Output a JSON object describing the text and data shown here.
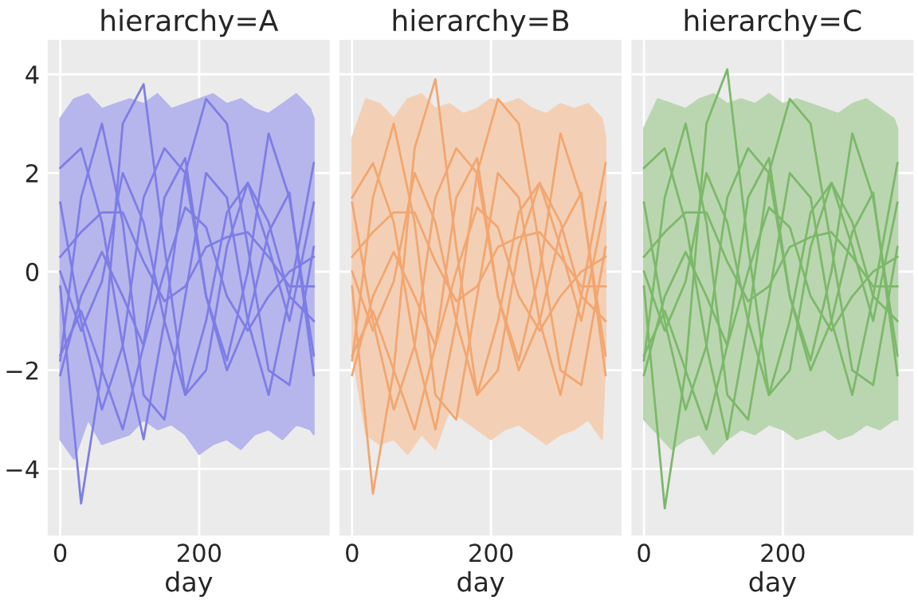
{
  "chart_data": [
    {
      "type": "line",
      "title": "hierarchy=A",
      "xlabel": "day",
      "xlim": [
        -18,
        388
      ],
      "ylim": [
        -5.35,
        4.7
      ],
      "xticks": [
        0,
        200
      ],
      "yticks": [
        -4,
        -2,
        0,
        2,
        4
      ],
      "grid": true,
      "x": [
        0,
        30,
        60,
        90,
        120,
        150,
        180,
        210,
        240,
        270,
        300,
        330,
        365
      ],
      "series": [
        {
          "type": "area",
          "color": "#b6b6ec",
          "x": [
            0,
            20,
            40,
            60,
            80,
            100,
            120,
            140,
            160,
            180,
            200,
            220,
            240,
            260,
            280,
            300,
            320,
            340,
            360,
            365
          ],
          "values": [
            3.1,
            3.5,
            3.6,
            3.3,
            3.4,
            3.5,
            3.4,
            3.6,
            3.3,
            3.4,
            3.5,
            3.6,
            3.4,
            3.5,
            3.3,
            3.2,
            3.4,
            3.6,
            3.3,
            3.1
          ]
        },
        {
          "type": "area",
          "color": "#b6b6ec",
          "x": [
            0,
            20,
            40,
            60,
            80,
            100,
            120,
            140,
            160,
            180,
            200,
            220,
            240,
            260,
            280,
            300,
            320,
            340,
            360,
            365
          ],
          "values": [
            -3.4,
            -3.8,
            -3.0,
            -3.5,
            -3.4,
            -3.3,
            -3.0,
            -3.2,
            -3.1,
            -3.3,
            -3.7,
            -3.5,
            -3.4,
            -3.6,
            -3.3,
            -3.2,
            -3.4,
            -3.1,
            -3.2,
            -3.3
          ]
        },
        {
          "color": "#7d7de6",
          "values": [
            -0.3,
            -4.7,
            -2.0,
            3.0,
            3.8,
            0.5,
            -2.5,
            -2.0,
            0.5,
            1.8,
            1.0,
            -0.5,
            -1.0
          ]
        },
        {
          "color": "#7d7de6",
          "values": [
            2.1,
            2.5,
            1.0,
            -1.5,
            -3.4,
            -1.0,
            2.0,
            3.5,
            3.0,
            0.5,
            -2.0,
            -2.3,
            0.5
          ]
        },
        {
          "color": "#7d7de6",
          "values": [
            0.3,
            0.8,
            1.2,
            1.2,
            0.2,
            -0.6,
            -0.3,
            0.5,
            0.7,
            0.8,
            0.3,
            -0.3,
            -0.3
          ]
        },
        {
          "color": "#7d7de6",
          "values": [
            -1.8,
            1.5,
            3.0,
            1.0,
            -2.5,
            -3.0,
            -0.5,
            2.0,
            1.5,
            -1.0,
            -2.5,
            -0.5,
            2.2
          ]
        },
        {
          "color": "#7d7de6",
          "values": [
            1.4,
            -1.0,
            -2.8,
            -1.5,
            1.5,
            2.5,
            2.0,
            -0.5,
            -1.8,
            0.0,
            2.8,
            1.5,
            -1.7
          ]
        },
        {
          "color": "#7d7de6",
          "values": [
            -2.1,
            -0.5,
            0.4,
            -0.5,
            -1.5,
            0.0,
            1.3,
            0.9,
            -0.5,
            -1.2,
            -0.5,
            0.0,
            0.3
          ]
        },
        {
          "color": "#7d7de6",
          "values": [
            0.0,
            -1.2,
            -0.2,
            2.0,
            1.0,
            -1.0,
            -2.5,
            -1.0,
            1.2,
            1.8,
            0.5,
            -1.0,
            1.4
          ]
        },
        {
          "color": "#7d7de6",
          "values": [
            -1.7,
            -0.8,
            -2.0,
            -3.2,
            -1.5,
            1.5,
            2.3,
            -0.5,
            -2.0,
            -1.0,
            0.8,
            1.6,
            -2.1
          ]
        }
      ]
    },
    {
      "type": "line",
      "title": "hierarchy=B",
      "xlabel": "day",
      "xlim": [
        -18,
        388
      ],
      "ylim": [
        -5.35,
        4.7
      ],
      "xticks": [
        0,
        200
      ],
      "yticks": [
        -4,
        -2,
        0,
        2,
        4
      ],
      "grid": true,
      "tick_labels": "x",
      "x": [
        0,
        30,
        60,
        90,
        120,
        150,
        180,
        210,
        240,
        270,
        300,
        330,
        365
      ],
      "series": [
        {
          "type": "area",
          "color": "#f3d0b5",
          "x": [
            0,
            20,
            40,
            60,
            80,
            100,
            120,
            140,
            160,
            180,
            200,
            220,
            240,
            260,
            280,
            300,
            320,
            340,
            360,
            365
          ],
          "values": [
            2.7,
            3.5,
            3.4,
            3.1,
            3.5,
            3.6,
            3.3,
            3.4,
            3.2,
            3.3,
            3.5,
            3.4,
            3.5,
            3.3,
            3.2,
            3.4,
            3.3,
            3.4,
            3.1,
            2.7
          ]
        },
        {
          "type": "area",
          "color": "#f3d0b5",
          "x": [
            0,
            20,
            40,
            60,
            80,
            100,
            120,
            140,
            160,
            180,
            200,
            220,
            240,
            260,
            280,
            300,
            320,
            340,
            360,
            365
          ],
          "values": [
            -1.6,
            -3.3,
            -3.5,
            -3.4,
            -3.7,
            -3.3,
            -3.6,
            -2.8,
            -3.0,
            -3.2,
            -3.4,
            -3.2,
            -3.1,
            -3.3,
            -3.5,
            -3.3,
            -3.2,
            -3.0,
            -3.4,
            -1.6
          ]
        },
        {
          "color": "#f2a670",
          "values": [
            -0.3,
            -4.5,
            -2.0,
            2.5,
            3.9,
            0.5,
            -2.5,
            -2.0,
            0.5,
            1.8,
            1.0,
            -0.5,
            -1.0
          ]
        },
        {
          "color": "#f2a670",
          "values": [
            1.5,
            2.2,
            1.0,
            -1.5,
            -3.2,
            -1.0,
            2.0,
            3.5,
            3.0,
            0.5,
            -2.0,
            -2.3,
            0.5
          ]
        },
        {
          "color": "#f2a670",
          "values": [
            0.3,
            0.8,
            1.2,
            1.2,
            0.2,
            -0.6,
            -0.3,
            0.5,
            0.7,
            0.8,
            0.3,
            -0.3,
            -0.3
          ]
        },
        {
          "color": "#f2a670",
          "values": [
            -1.8,
            1.5,
            3.0,
            1.0,
            -2.5,
            -3.0,
            -0.5,
            2.0,
            1.5,
            -1.0,
            -2.5,
            -0.5,
            2.2
          ]
        },
        {
          "color": "#f2a670",
          "values": [
            1.4,
            -1.0,
            -2.8,
            -1.5,
            1.5,
            2.5,
            2.0,
            -0.5,
            -1.8,
            0.0,
            2.8,
            1.5,
            -1.7
          ]
        },
        {
          "color": "#f2a670",
          "values": [
            -2.1,
            -0.5,
            0.4,
            -0.5,
            -1.5,
            0.0,
            1.3,
            0.9,
            -0.5,
            -1.2,
            -0.5,
            0.0,
            0.3
          ]
        },
        {
          "color": "#f2a670",
          "values": [
            0.0,
            -1.2,
            -0.2,
            2.0,
            1.0,
            -1.0,
            -2.5,
            -1.0,
            1.2,
            1.8,
            0.5,
            -1.0,
            1.4
          ]
        },
        {
          "color": "#f2a670",
          "values": [
            -1.7,
            -0.8,
            -2.0,
            -3.2,
            -1.5,
            1.5,
            2.3,
            -0.5,
            -2.0,
            -1.0,
            0.8,
            1.6,
            -2.1
          ]
        }
      ]
    },
    {
      "type": "line",
      "title": "hierarchy=C",
      "xlabel": "day",
      "xlim": [
        -18,
        388
      ],
      "ylim": [
        -5.35,
        4.7
      ],
      "xticks": [
        0,
        200
      ],
      "yticks": [
        -4,
        -2,
        0,
        2,
        4
      ],
      "grid": true,
      "tick_labels": "x",
      "x": [
        0,
        30,
        60,
        90,
        120,
        150,
        180,
        210,
        240,
        270,
        300,
        330,
        365
      ],
      "series": [
        {
          "type": "area",
          "color": "#bad6b0",
          "x": [
            0,
            20,
            40,
            60,
            80,
            100,
            120,
            140,
            160,
            180,
            200,
            220,
            240,
            260,
            280,
            300,
            320,
            340,
            360,
            365
          ],
          "values": [
            2.9,
            3.5,
            3.4,
            3.3,
            3.5,
            3.6,
            3.4,
            3.5,
            3.4,
            3.6,
            3.4,
            3.5,
            3.4,
            3.3,
            3.2,
            3.4,
            3.5,
            3.3,
            3.1,
            2.9
          ]
        },
        {
          "type": "area",
          "color": "#bad6b0",
          "x": [
            0,
            20,
            40,
            60,
            80,
            100,
            120,
            140,
            160,
            180,
            200,
            220,
            240,
            260,
            280,
            300,
            320,
            340,
            360,
            365
          ],
          "values": [
            -3.0,
            -3.3,
            -3.6,
            -3.4,
            -3.3,
            -3.7,
            -3.4,
            -3.2,
            -3.3,
            -3.1,
            -3.2,
            -3.4,
            -3.3,
            -3.2,
            -3.4,
            -3.3,
            -3.1,
            -3.2,
            -3.0,
            -3.0
          ]
        },
        {
          "color": "#7cb86a",
          "values": [
            -0.3,
            -4.8,
            -2.0,
            3.0,
            4.1,
            0.5,
            -2.5,
            -2.0,
            0.5,
            1.8,
            1.0,
            -0.5,
            -1.0
          ]
        },
        {
          "color": "#7cb86a",
          "values": [
            2.1,
            2.5,
            1.0,
            -1.5,
            -3.4,
            -1.0,
            2.0,
            3.5,
            3.0,
            0.5,
            -2.0,
            -2.3,
            0.5
          ]
        },
        {
          "color": "#7cb86a",
          "values": [
            0.3,
            0.8,
            1.2,
            1.2,
            0.2,
            -0.6,
            -0.3,
            0.5,
            0.7,
            0.8,
            0.3,
            -0.3,
            -0.3
          ]
        },
        {
          "color": "#7cb86a",
          "values": [
            -1.8,
            1.5,
            3.0,
            1.0,
            -2.5,
            -3.0,
            -0.5,
            2.0,
            1.5,
            -1.0,
            -2.5,
            -0.5,
            2.2
          ]
        },
        {
          "color": "#7cb86a",
          "values": [
            1.4,
            -1.0,
            -2.8,
            -1.5,
            1.5,
            2.5,
            2.0,
            -0.5,
            -1.8,
            0.0,
            2.8,
            1.5,
            -1.7
          ]
        },
        {
          "color": "#7cb86a",
          "values": [
            -2.1,
            -0.5,
            0.4,
            -0.5,
            -1.5,
            0.0,
            1.3,
            0.9,
            -0.5,
            -1.2,
            -0.5,
            0.0,
            0.3
          ]
        },
        {
          "color": "#7cb86a",
          "values": [
            0.0,
            -1.2,
            -0.2,
            2.0,
            1.0,
            -1.0,
            -2.5,
            -1.0,
            1.2,
            1.8,
            0.5,
            -1.0,
            1.4
          ]
        },
        {
          "color": "#7cb86a",
          "values": [
            -1.7,
            -0.8,
            -2.0,
            -3.2,
            -1.5,
            1.5,
            2.3,
            -0.5,
            -2.0,
            -1.0,
            0.8,
            1.6,
            -2.1
          ]
        }
      ]
    }
  ]
}
